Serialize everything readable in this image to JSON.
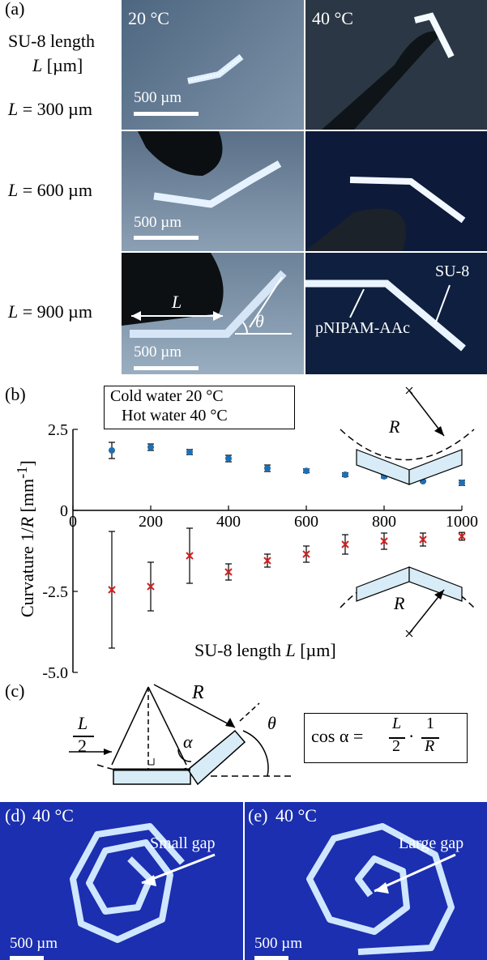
{
  "panel_a": {
    "label": "(a)",
    "temp_cold": "20 °C",
    "temp_hot": "40 °C",
    "header_line1": "SU-8 length",
    "header_line2": "L [µm]",
    "rows": [
      {
        "label": "L = 300 µm",
        "scalebar": "500 µm"
      },
      {
        "label": "L = 600 µm",
        "scalebar": "500 µm"
      },
      {
        "label": "L = 900 µm",
        "scalebar": "500 µm"
      }
    ],
    "annot_L": "L",
    "annot_theta": "θ",
    "annot_su8": "SU-8",
    "annot_pnipam": "pNIPAM-AAc"
  },
  "panel_b": {
    "label": "(b)",
    "legend_cold": "Cold water 20 °C",
    "legend_hot": "Hot water 40 °C",
    "inset_R_top": "R",
    "inset_R_bottom": "R"
  },
  "chart_data": {
    "type": "scatter",
    "xlabel": "SU-8 length L [µm]",
    "ylabel": "Curvature 1/R [mm⁻¹]",
    "xlim": [
      0,
      1000
    ],
    "ylim": [
      -5.0,
      2.5
    ],
    "xticks": [
      "0",
      "200",
      "400",
      "600",
      "800",
      "1000"
    ],
    "yticks": [
      "2.5",
      "0",
      "-2.5",
      "-5.0"
    ],
    "x": [
      100,
      200,
      300,
      400,
      500,
      600,
      700,
      800,
      900,
      1000
    ],
    "series": [
      {
        "name": "Cold water 20 °C",
        "marker": "dot",
        "color": "#1f6fb2",
        "values": [
          1.85,
          1.95,
          1.8,
          1.6,
          1.3,
          1.22,
          1.1,
          1.05,
          0.9,
          0.85
        ],
        "errors": [
          0.25,
          0.1,
          0.08,
          0.1,
          0.1,
          0.06,
          0.06,
          0.05,
          0.02,
          0.08
        ]
      },
      {
        "name": "Hot water 40 °C",
        "marker": "cross",
        "color": "#d62020",
        "values": [
          -2.45,
          -2.35,
          -1.4,
          -1.9,
          -1.55,
          -1.35,
          -1.05,
          -0.95,
          -0.9,
          -0.8
        ],
        "errors": [
          1.8,
          0.75,
          0.85,
          0.25,
          0.2,
          0.25,
          0.3,
          0.25,
          0.2,
          0.12
        ]
      }
    ]
  },
  "panel_c": {
    "label": "(c)",
    "frac_num": "L",
    "frac_den": "2",
    "R": "R",
    "alpha": "α",
    "theta": "θ",
    "formula_prefix": "cos α =",
    "formula_f1_num": "L",
    "formula_f1_den": "2",
    "formula_dot": "·",
    "formula_f2_num": "1",
    "formula_f2_den": "R"
  },
  "panel_d": {
    "label": "(d)",
    "temp": "40 °C",
    "annotation": "Small gap",
    "scalebar": "500 µm"
  },
  "panel_e": {
    "label": "(e)",
    "temp": "40 °C",
    "annotation": "Large gap",
    "scalebar": "500 µm"
  }
}
